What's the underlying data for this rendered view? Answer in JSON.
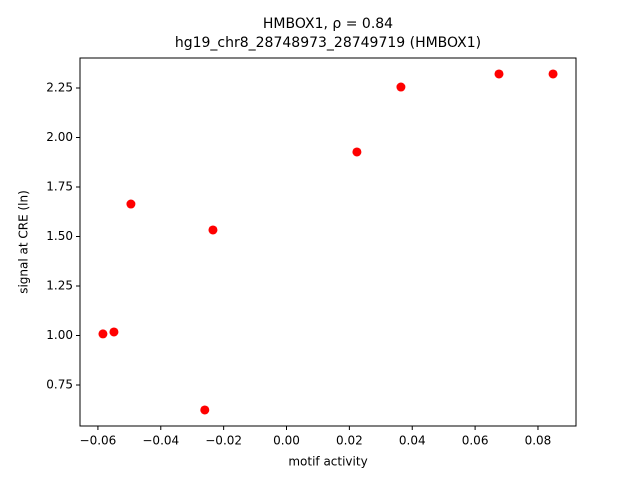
{
  "chart_data": {
    "type": "scatter",
    "title": "HMBOX1, ρ = 0.84",
    "subtitle": "hg19_chr8_28748973_28749719 (HMBOX1)",
    "x_label": "motif activity",
    "y_label": "signal at CRE (ln)",
    "color": "#ff0000",
    "x": [
      -0.0584,
      -0.0549,
      -0.0495,
      -0.026,
      -0.0234,
      0.0224,
      0.0364,
      0.0676,
      0.0848
    ],
    "y": [
      1.008,
      1.018,
      1.664,
      0.624,
      1.533,
      1.927,
      2.255,
      2.321,
      2.321
    ],
    "xlim": [
      -0.0657,
      0.0921
    ],
    "ylim": [
      0.543,
      2.4015
    ],
    "xticks": [
      {
        "value": -0.06,
        "label": "−0.06"
      },
      {
        "value": -0.04,
        "label": "−0.04"
      },
      {
        "value": -0.02,
        "label": "−0.02"
      },
      {
        "value": 0,
        "label": "0.00"
      },
      0.02,
      0.04,
      0.06,
      0.08
    ],
    "yticks": [
      0.75,
      {
        "value": 1,
        "label": "1.00"
      },
      1.25,
      {
        "value": 1.5,
        "label": "1.50"
      },
      1.75,
      {
        "value": 2,
        "label": "2.00"
      },
      2.25
    ],
    "grid": false
  }
}
